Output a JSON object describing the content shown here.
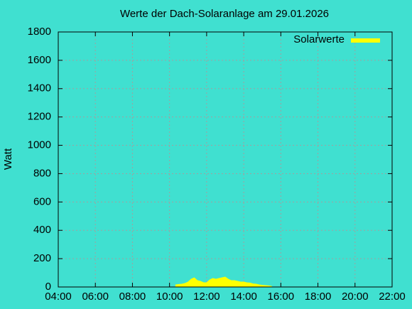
{
  "chart_data": {
    "type": "area",
    "title": "Werte der Dach-Solaranlage am 29.01.2026",
    "y_label": "Watt",
    "x": [
      "10:20",
      "10:30",
      "10:40",
      "10:50",
      "11:00",
      "11:10",
      "11:20",
      "11:30",
      "11:40",
      "11:50",
      "12:00",
      "12:10",
      "12:20",
      "12:30",
      "12:40",
      "12:50",
      "13:00",
      "13:10",
      "13:20",
      "13:30",
      "13:40",
      "13:50",
      "14:00",
      "14:10",
      "14:20",
      "14:30",
      "14:40",
      "14:50",
      "15:00",
      "15:10",
      "15:20",
      "15:30"
    ],
    "series": [
      {
        "name": "Solarwerte",
        "color": "#ffff00",
        "values": [
          15,
          18,
          20,
          25,
          35,
          55,
          65,
          45,
          40,
          30,
          30,
          50,
          60,
          55,
          60,
          65,
          70,
          55,
          45,
          45,
          40,
          35,
          35,
          30,
          28,
          22,
          20,
          15,
          12,
          10,
          8,
          5
        ]
      }
    ],
    "xlim": [
      "04:00",
      "22:00"
    ],
    "xticks": [
      "04:00",
      "06:00",
      "08:00",
      "10:00",
      "12:00",
      "14:00",
      "16:00",
      "18:00",
      "20:00",
      "22:00"
    ],
    "ylim": [
      0,
      1800
    ],
    "yticks": [
      0,
      200,
      400,
      600,
      800,
      1000,
      1200,
      1400,
      1600,
      1800
    ],
    "grid": true,
    "legend": "top-right"
  }
}
